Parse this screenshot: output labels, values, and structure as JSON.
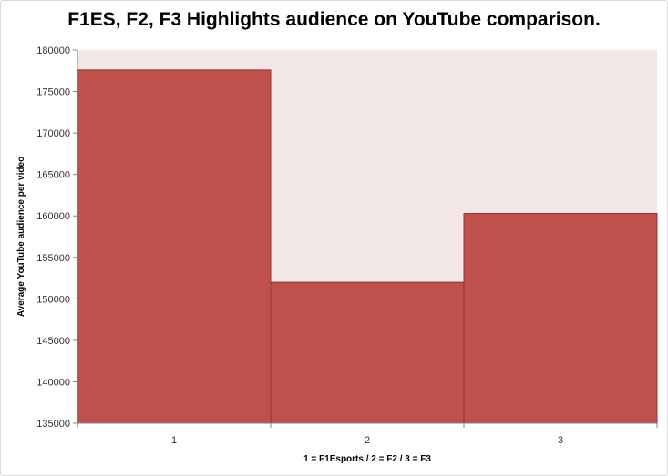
{
  "chart_data": {
    "type": "bar",
    "title": "F1ES, F2, F3 Highlights audience on YouTube comparison.",
    "categories": [
      "1",
      "2",
      "3"
    ],
    "values": [
      177600,
      152000,
      160300
    ],
    "xlabel": "1 =  F1Esports / 2 = F2 / 3 = F3",
    "ylabel": "Average YouTube audience  per video",
    "ylim": [
      135000,
      180000
    ],
    "yticks": [
      "135000",
      "140000",
      "145000",
      "150000",
      "155000",
      "160000",
      "165000",
      "170000",
      "175000",
      "180000"
    ],
    "grid": false,
    "colors": {
      "bar_fill": "#c0504d",
      "bar_stroke": "#8c3836",
      "plot_bg": "#f2e6e6"
    }
  }
}
